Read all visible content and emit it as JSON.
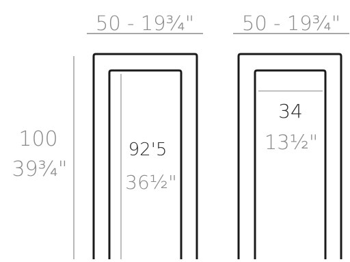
{
  "colors": {
    "outline": "#1a1a1a",
    "dimension_text": "#8a8a8a",
    "primary_text": "#2a2a2a",
    "guide_line": "#9a9a9a"
  },
  "dimensions": {
    "width_left": "50 - 19¾\"",
    "width_right": "50 - 19¾\"",
    "height_cm": "100",
    "height_in": "39¾\"",
    "inner_left_cm": "92'5",
    "inner_left_in": "36½\"",
    "inner_right_cm": "34",
    "inner_right_in": "13½\""
  }
}
